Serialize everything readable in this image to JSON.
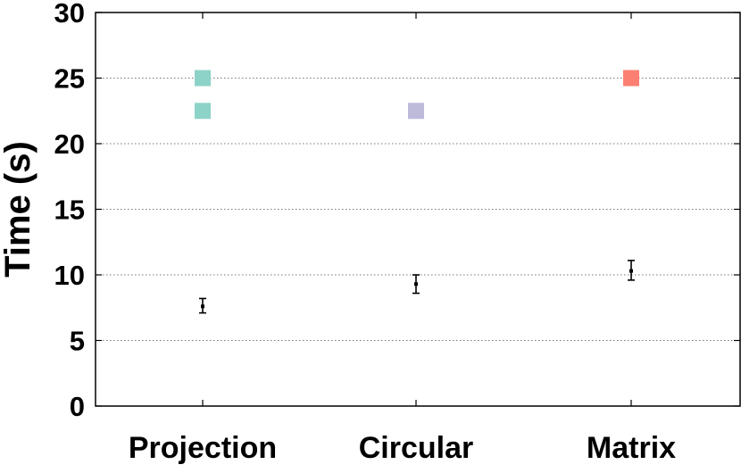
{
  "chart_data": {
    "type": "scatter",
    "title": "",
    "xlabel": "",
    "ylabel": "Time (s)",
    "categories": [
      "Projection",
      "Circular",
      "Matrix"
    ],
    "ylim": [
      0,
      30
    ],
    "yticks": [
      0,
      5,
      10,
      15,
      20,
      25,
      30
    ],
    "grid": true,
    "legend": "none",
    "outlier_points": [
      {
        "category": "Projection",
        "value": 25.0,
        "color": "#8dd3c7"
      },
      {
        "category": "Projection",
        "value": 22.5,
        "color": "#8dd3c7"
      },
      {
        "category": "Circular",
        "value": 22.5,
        "color": "#bebada"
      },
      {
        "category": "Matrix",
        "value": 25.0,
        "color": "#fb8072"
      }
    ],
    "mean_with_error": [
      {
        "category": "Projection",
        "mean": 7.6,
        "lower": 7.1,
        "upper": 8.2
      },
      {
        "category": "Circular",
        "mean": 9.3,
        "lower": 8.6,
        "upper": 10.0
      },
      {
        "category": "Matrix",
        "mean": 10.3,
        "lower": 9.6,
        "upper": 11.1
      }
    ]
  }
}
